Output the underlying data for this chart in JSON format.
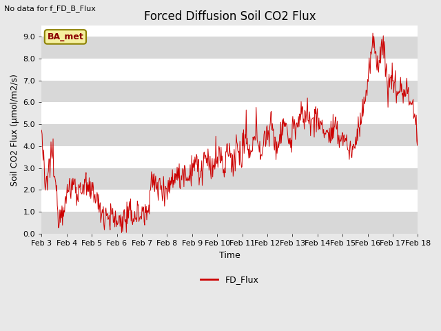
{
  "title": "Forced Diffusion Soil CO2 Flux",
  "top_left_text": "No data for f_FD_B_Flux",
  "xlabel": "Time",
  "ylabel": "Soil CO2 Flux (μmol/m2/s)",
  "ylim": [
    0.0,
    9.5
  ],
  "yticks": [
    0.0,
    1.0,
    2.0,
    3.0,
    4.0,
    5.0,
    6.0,
    7.0,
    8.0,
    9.0
  ],
  "legend_label": "FD_Flux",
  "line_color": "#cc0000",
  "fig_bg_color": "#e8e8e8",
  "plot_bg_color": "#ffffff",
  "grid_color": "#d8d8d8",
  "ba_met_box_color": "#f5f0a0",
  "ba_met_text_color": "#8b0000",
  "ba_met_edge_color": "#8b8000",
  "title_fontsize": 12,
  "label_fontsize": 9,
  "tick_fontsize": 8,
  "note_fontsize": 8,
  "xtick_labels": [
    "Feb 3",
    "Feb 4",
    "Feb 5",
    "Feb 6",
    "Feb 7",
    "Feb 8",
    "Feb 9",
    "Feb 10",
    "Feb 11",
    "Feb 12",
    "Feb 13",
    "Feb 14",
    "Feb 15",
    "Feb 16",
    "Feb 17",
    "Feb 18"
  ],
  "seed": 12345,
  "num_points": 720
}
